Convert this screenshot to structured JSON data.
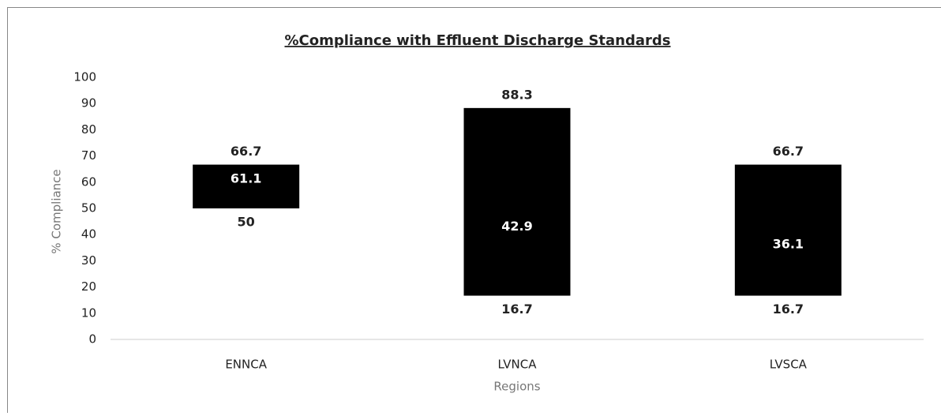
{
  "chart_data": {
    "type": "floating-bar",
    "title": "%Compliance with Effluent Discharge Standards",
    "x_label": "Regions",
    "y_label": "% Compliance",
    "categories": [
      "ENNCA",
      "LVNCA",
      "LVSCA"
    ],
    "low": [
      50,
      16.7,
      16.7
    ],
    "high": [
      66.7,
      88.3,
      66.7
    ],
    "mid": [
      61.1,
      42.9,
      36.1
    ],
    "color": "#000000",
    "ylim": [
      0,
      100
    ],
    "yticks": [
      0,
      10,
      20,
      30,
      40,
      50,
      60,
      70,
      80,
      90,
      100
    ],
    "grid": false
  }
}
